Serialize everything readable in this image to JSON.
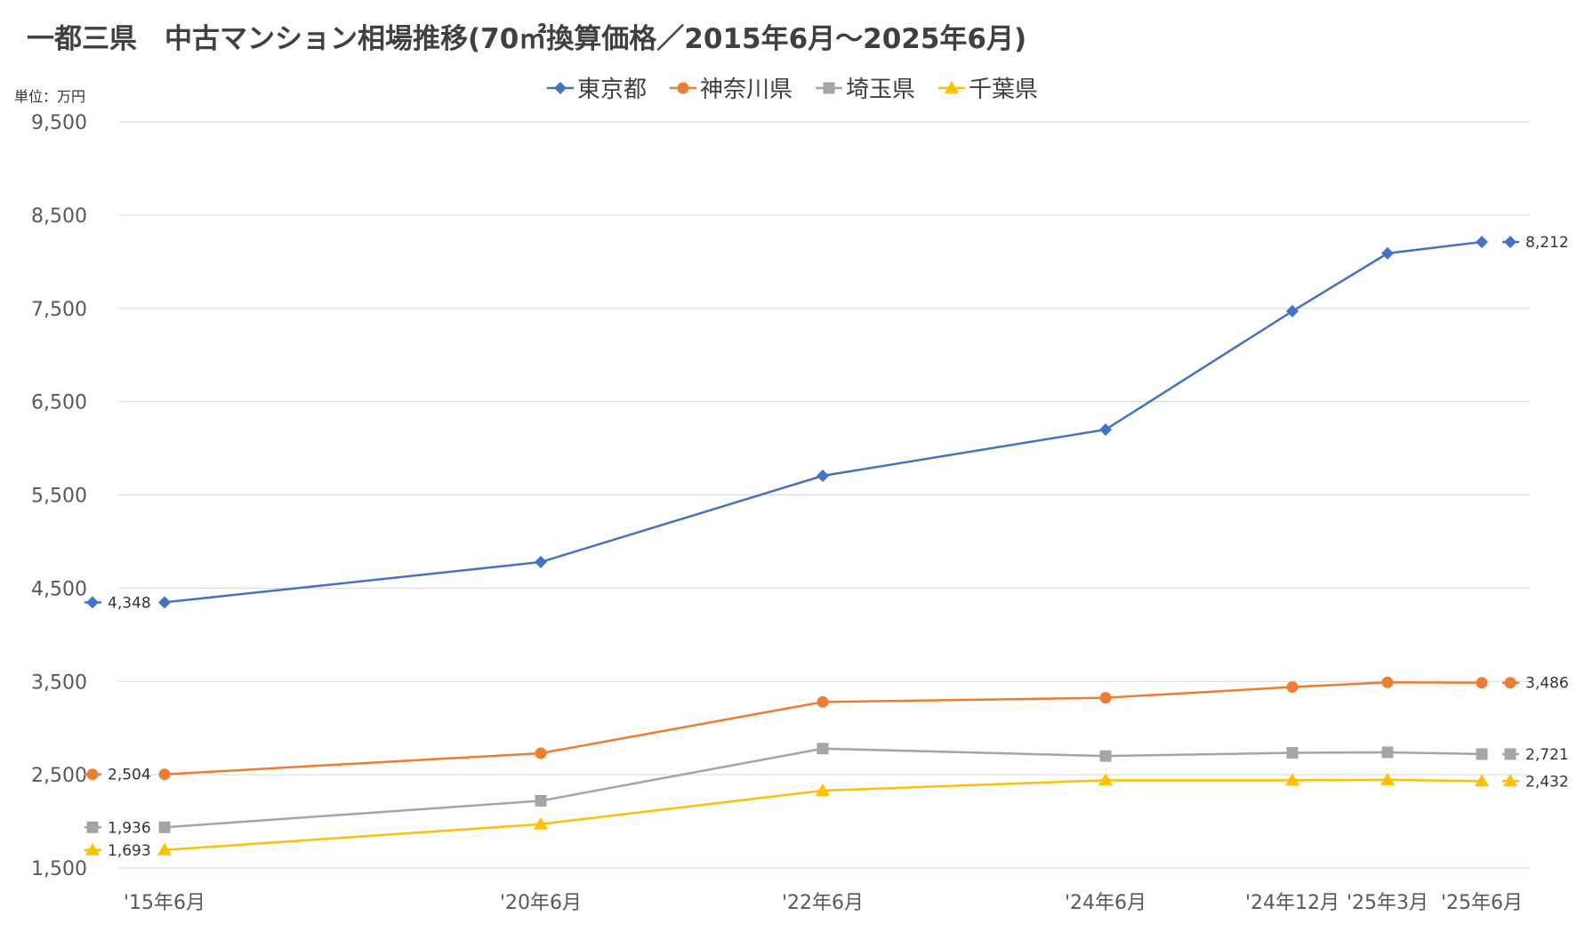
{
  "chart_data": {
    "type": "line",
    "title": "一都三県　中古マンション相場推移(70㎡換算価格／2015年6月～2025年6月)",
    "unit_label": "単位：万円",
    "categories": [
      "'15年6月",
      "'20年6月",
      "'22年6月",
      "'24年6月",
      "'24年12月",
      "'25年3月",
      "'25年6月"
    ],
    "x_dates": [
      "2015-06",
      "2020-06",
      "2022-06",
      "2024-06",
      "2024-12",
      "2025-03",
      "2025-06"
    ],
    "ylim": [
      1500,
      9500
    ],
    "yticks": [
      1500,
      2500,
      3500,
      4500,
      5500,
      6500,
      7500,
      8500,
      9500
    ],
    "ytick_labels": [
      "1,500",
      "2,500",
      "3,500",
      "4,500",
      "5,500",
      "6,500",
      "7,500",
      "8,500",
      "9,500"
    ],
    "grid": true,
    "legend_position": "top",
    "series": [
      {
        "name": "東京都",
        "color": "#4472C4",
        "marker": "diamond",
        "values": [
          4348,
          4780,
          5705,
          6200,
          7470,
          8090,
          8212
        ],
        "start_label": "4,348",
        "end_label": "8,212"
      },
      {
        "name": "神奈川県",
        "color": "#ED7D31",
        "marker": "circle",
        "values": [
          2504,
          2730,
          3280,
          3325,
          3440,
          3490,
          3486
        ],
        "start_label": "2,504",
        "end_label": "3,486"
      },
      {
        "name": "埼玉県",
        "color": "#A5A5A5",
        "marker": "square",
        "values": [
          1936,
          2220,
          2780,
          2700,
          2735,
          2740,
          2721
        ],
        "start_label": "1,936",
        "end_label": "2,721"
      },
      {
        "name": "千葉県",
        "color": "#FFC000",
        "marker": "triangle",
        "values": [
          1693,
          1970,
          2330,
          2440,
          2440,
          2445,
          2432
        ],
        "start_label": "1,693",
        "end_label": "2,432"
      }
    ]
  }
}
